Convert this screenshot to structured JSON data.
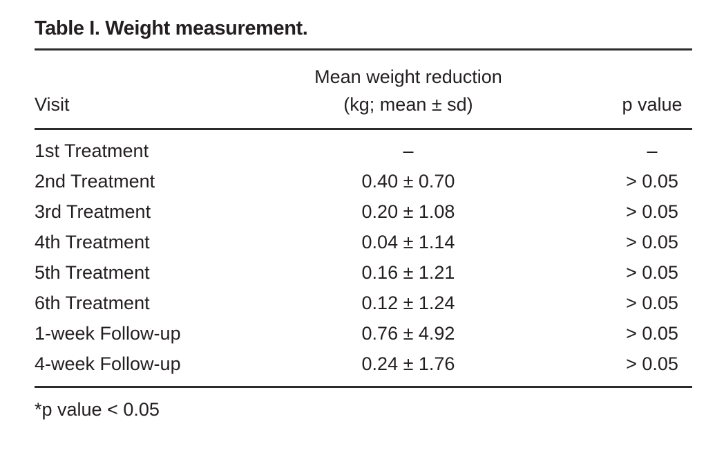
{
  "title": "Table I. Weight measurement.",
  "table": {
    "columns": {
      "visit": "Visit",
      "mean_line1": "Mean weight reduction",
      "mean_line2": "(kg; mean ± sd)",
      "p_value": "p value"
    },
    "rows": [
      {
        "visit": "1st Treatment",
        "mean": "–",
        "p": "–"
      },
      {
        "visit": "2nd Treatment",
        "mean": "0.40 ± 0.70",
        "p": "> 0.05"
      },
      {
        "visit": "3rd Treatment",
        "mean": "0.20 ± 1.08",
        "p": "> 0.05"
      },
      {
        "visit": "4th Treatment",
        "mean": "0.04 ± 1.14",
        "p": "> 0.05"
      },
      {
        "visit": "5th Treatment",
        "mean": "0.16 ± 1.21",
        "p": "> 0.05"
      },
      {
        "visit": "6th Treatment",
        "mean": "0.12 ± 1.24",
        "p": "> 0.05"
      },
      {
        "visit": "1-week Follow-up",
        "mean": "0.76 ± 4.92",
        "p": "> 0.05"
      },
      {
        "visit": "4-week Follow-up",
        "mean": "0.24 ± 1.76",
        "p": "> 0.05"
      }
    ]
  },
  "footnote": "*p value < 0.05",
  "colors": {
    "text": "#231f20",
    "rule": "#2b2b2b",
    "background": "#ffffff"
  }
}
